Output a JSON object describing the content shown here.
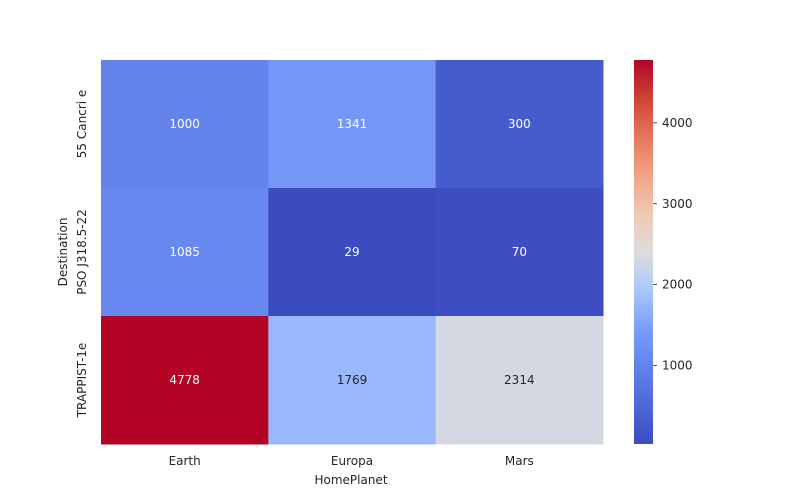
{
  "chart_data": {
    "type": "heatmap",
    "title": "",
    "xlabel": "HomePlanet",
    "ylabel": "Destination",
    "x_categories": [
      "Earth",
      "Europa",
      "Mars"
    ],
    "y_categories": [
      "55 Cancri e",
      "PSO J318.5-22",
      "TRAPPIST-1e"
    ],
    "values": [
      [
        1000,
        1341,
        300
      ],
      [
        1085,
        29,
        70
      ],
      [
        4778,
        1769,
        2314
      ]
    ],
    "colormap": "coolwarm",
    "color_range": [
      29,
      4778
    ],
    "colorbar_ticks": [
      1000,
      2000,
      3000,
      4000
    ],
    "annotations": true
  }
}
